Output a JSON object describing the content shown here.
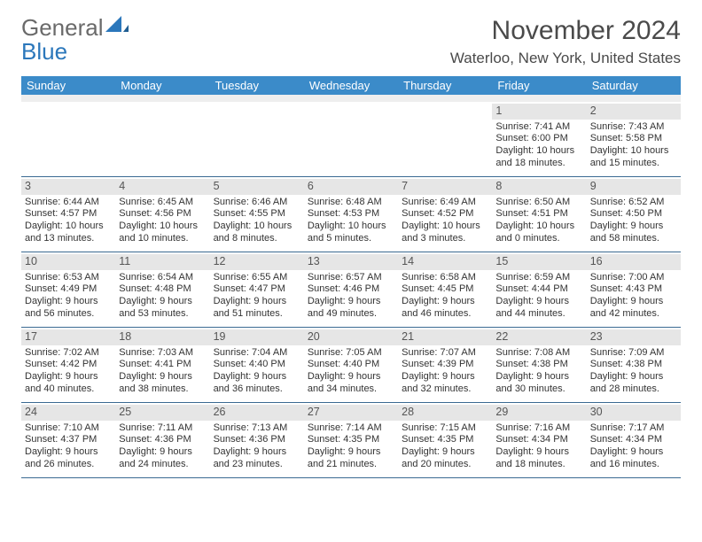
{
  "logo": {
    "general": "General",
    "blue": "Blue"
  },
  "title": "November 2024",
  "location": "Waterloo, New York, United States",
  "colors": {
    "header_bg": "#3b8bc9",
    "header_text": "#ffffff",
    "daynum_bg": "#e6e6e6",
    "row_border": "#3b6a92",
    "logo_gray": "#6a6a6a",
    "logo_blue": "#2b77bb"
  },
  "weekdays": [
    "Sunday",
    "Monday",
    "Tuesday",
    "Wednesday",
    "Thursday",
    "Friday",
    "Saturday"
  ],
  "weeks": [
    [
      null,
      null,
      null,
      null,
      null,
      {
        "n": "1",
        "sunrise": "Sunrise: 7:41 AM",
        "sunset": "Sunset: 6:00 PM",
        "day1": "Daylight: 10 hours",
        "day2": "and 18 minutes."
      },
      {
        "n": "2",
        "sunrise": "Sunrise: 7:43 AM",
        "sunset": "Sunset: 5:58 PM",
        "day1": "Daylight: 10 hours",
        "day2": "and 15 minutes."
      }
    ],
    [
      {
        "n": "3",
        "sunrise": "Sunrise: 6:44 AM",
        "sunset": "Sunset: 4:57 PM",
        "day1": "Daylight: 10 hours",
        "day2": "and 13 minutes."
      },
      {
        "n": "4",
        "sunrise": "Sunrise: 6:45 AM",
        "sunset": "Sunset: 4:56 PM",
        "day1": "Daylight: 10 hours",
        "day2": "and 10 minutes."
      },
      {
        "n": "5",
        "sunrise": "Sunrise: 6:46 AM",
        "sunset": "Sunset: 4:55 PM",
        "day1": "Daylight: 10 hours",
        "day2": "and 8 minutes."
      },
      {
        "n": "6",
        "sunrise": "Sunrise: 6:48 AM",
        "sunset": "Sunset: 4:53 PM",
        "day1": "Daylight: 10 hours",
        "day2": "and 5 minutes."
      },
      {
        "n": "7",
        "sunrise": "Sunrise: 6:49 AM",
        "sunset": "Sunset: 4:52 PM",
        "day1": "Daylight: 10 hours",
        "day2": "and 3 minutes."
      },
      {
        "n": "8",
        "sunrise": "Sunrise: 6:50 AM",
        "sunset": "Sunset: 4:51 PM",
        "day1": "Daylight: 10 hours",
        "day2": "and 0 minutes."
      },
      {
        "n": "9",
        "sunrise": "Sunrise: 6:52 AM",
        "sunset": "Sunset: 4:50 PM",
        "day1": "Daylight: 9 hours",
        "day2": "and 58 minutes."
      }
    ],
    [
      {
        "n": "10",
        "sunrise": "Sunrise: 6:53 AM",
        "sunset": "Sunset: 4:49 PM",
        "day1": "Daylight: 9 hours",
        "day2": "and 56 minutes."
      },
      {
        "n": "11",
        "sunrise": "Sunrise: 6:54 AM",
        "sunset": "Sunset: 4:48 PM",
        "day1": "Daylight: 9 hours",
        "day2": "and 53 minutes."
      },
      {
        "n": "12",
        "sunrise": "Sunrise: 6:55 AM",
        "sunset": "Sunset: 4:47 PM",
        "day1": "Daylight: 9 hours",
        "day2": "and 51 minutes."
      },
      {
        "n": "13",
        "sunrise": "Sunrise: 6:57 AM",
        "sunset": "Sunset: 4:46 PM",
        "day1": "Daylight: 9 hours",
        "day2": "and 49 minutes."
      },
      {
        "n": "14",
        "sunrise": "Sunrise: 6:58 AM",
        "sunset": "Sunset: 4:45 PM",
        "day1": "Daylight: 9 hours",
        "day2": "and 46 minutes."
      },
      {
        "n": "15",
        "sunrise": "Sunrise: 6:59 AM",
        "sunset": "Sunset: 4:44 PM",
        "day1": "Daylight: 9 hours",
        "day2": "and 44 minutes."
      },
      {
        "n": "16",
        "sunrise": "Sunrise: 7:00 AM",
        "sunset": "Sunset: 4:43 PM",
        "day1": "Daylight: 9 hours",
        "day2": "and 42 minutes."
      }
    ],
    [
      {
        "n": "17",
        "sunrise": "Sunrise: 7:02 AM",
        "sunset": "Sunset: 4:42 PM",
        "day1": "Daylight: 9 hours",
        "day2": "and 40 minutes."
      },
      {
        "n": "18",
        "sunrise": "Sunrise: 7:03 AM",
        "sunset": "Sunset: 4:41 PM",
        "day1": "Daylight: 9 hours",
        "day2": "and 38 minutes."
      },
      {
        "n": "19",
        "sunrise": "Sunrise: 7:04 AM",
        "sunset": "Sunset: 4:40 PM",
        "day1": "Daylight: 9 hours",
        "day2": "and 36 minutes."
      },
      {
        "n": "20",
        "sunrise": "Sunrise: 7:05 AM",
        "sunset": "Sunset: 4:40 PM",
        "day1": "Daylight: 9 hours",
        "day2": "and 34 minutes."
      },
      {
        "n": "21",
        "sunrise": "Sunrise: 7:07 AM",
        "sunset": "Sunset: 4:39 PM",
        "day1": "Daylight: 9 hours",
        "day2": "and 32 minutes."
      },
      {
        "n": "22",
        "sunrise": "Sunrise: 7:08 AM",
        "sunset": "Sunset: 4:38 PM",
        "day1": "Daylight: 9 hours",
        "day2": "and 30 minutes."
      },
      {
        "n": "23",
        "sunrise": "Sunrise: 7:09 AM",
        "sunset": "Sunset: 4:38 PM",
        "day1": "Daylight: 9 hours",
        "day2": "and 28 minutes."
      }
    ],
    [
      {
        "n": "24",
        "sunrise": "Sunrise: 7:10 AM",
        "sunset": "Sunset: 4:37 PM",
        "day1": "Daylight: 9 hours",
        "day2": "and 26 minutes."
      },
      {
        "n": "25",
        "sunrise": "Sunrise: 7:11 AM",
        "sunset": "Sunset: 4:36 PM",
        "day1": "Daylight: 9 hours",
        "day2": "and 24 minutes."
      },
      {
        "n": "26",
        "sunrise": "Sunrise: 7:13 AM",
        "sunset": "Sunset: 4:36 PM",
        "day1": "Daylight: 9 hours",
        "day2": "and 23 minutes."
      },
      {
        "n": "27",
        "sunrise": "Sunrise: 7:14 AM",
        "sunset": "Sunset: 4:35 PM",
        "day1": "Daylight: 9 hours",
        "day2": "and 21 minutes."
      },
      {
        "n": "28",
        "sunrise": "Sunrise: 7:15 AM",
        "sunset": "Sunset: 4:35 PM",
        "day1": "Daylight: 9 hours",
        "day2": "and 20 minutes."
      },
      {
        "n": "29",
        "sunrise": "Sunrise: 7:16 AM",
        "sunset": "Sunset: 4:34 PM",
        "day1": "Daylight: 9 hours",
        "day2": "and 18 minutes."
      },
      {
        "n": "30",
        "sunrise": "Sunrise: 7:17 AM",
        "sunset": "Sunset: 4:34 PM",
        "day1": "Daylight: 9 hours",
        "day2": "and 16 minutes."
      }
    ]
  ]
}
